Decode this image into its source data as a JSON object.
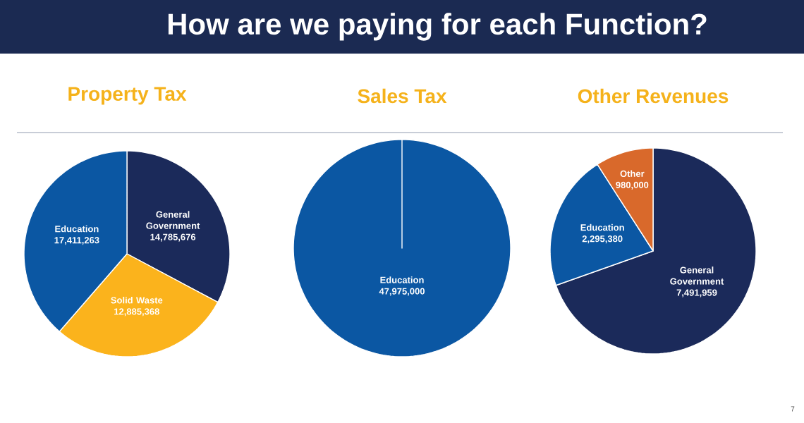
{
  "chart_data": [
    {
      "type": "pie",
      "title": "Property Tax",
      "categories": [
        "General Government",
        "Solid Waste",
        "Education"
      ],
      "values": [
        14785676,
        12885368,
        17411263
      ],
      "value_labels": [
        "14,785,676",
        "12,885,368",
        "17,411,263"
      ],
      "colors": [
        "#1b2a5a",
        "#fbb31c",
        "#0b57a3"
      ],
      "annotations": [
        "How are we paying for each Function?"
      ]
    },
    {
      "type": "pie",
      "title": "Sales Tax",
      "categories": [
        "Education"
      ],
      "values": [
        47975000
      ],
      "value_labels": [
        "47,975,000"
      ],
      "colors": [
        "#0b57a3"
      ]
    },
    {
      "type": "pie",
      "title": "Other Revenues",
      "categories": [
        "General Government",
        "Education",
        "Other"
      ],
      "values": [
        7491959,
        2295380,
        980000
      ],
      "value_labels": [
        "7,491,959",
        "2,295,380",
        "980,000"
      ],
      "colors": [
        "#1b2a5a",
        "#0b57a3",
        "#d9692b"
      ],
      "annotations": [
        "7"
      ]
    }
  ]
}
